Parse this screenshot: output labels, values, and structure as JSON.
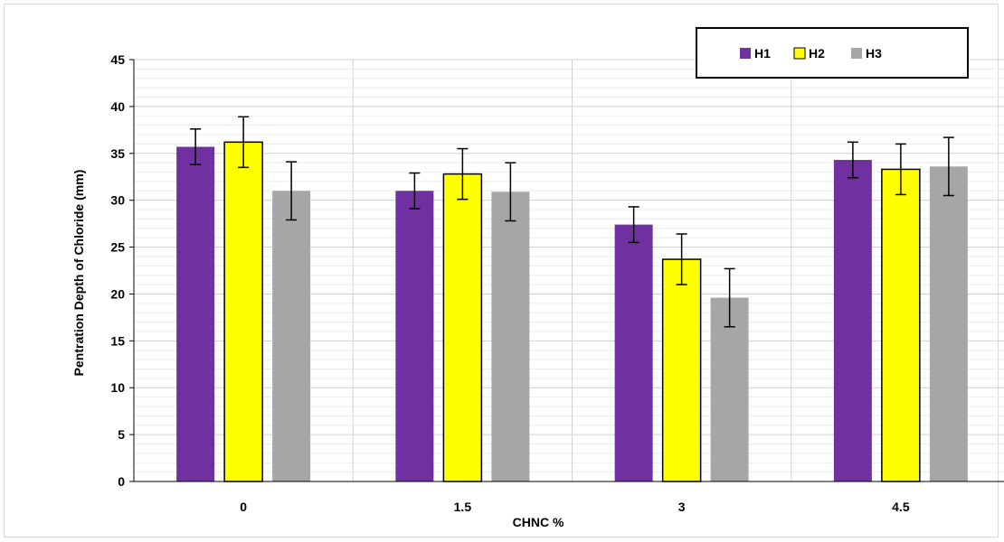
{
  "chart_data": {
    "type": "bar",
    "title": "",
    "xlabel": "CHNC %",
    "ylabel": "Pentration Depth of Chloride (mm)",
    "categories": [
      "0",
      "1.5",
      "3",
      "4.5"
    ],
    "ylim": [
      0,
      45
    ],
    "yticks": [
      "0",
      "5",
      "10",
      "15",
      "20",
      "25",
      "30",
      "35",
      "40",
      "45"
    ],
    "grid": true,
    "legend_position": "top-right",
    "series": [
      {
        "name": "H1",
        "color": "#7030a0",
        "values": [
          35.7,
          31.0,
          27.4,
          34.3
        ],
        "errors": [
          1.9,
          1.9,
          1.9,
          1.9
        ]
      },
      {
        "name": "H2",
        "color": "#ffff00",
        "values": [
          36.2,
          32.8,
          23.7,
          33.3
        ],
        "errors": [
          2.7,
          2.7,
          2.7,
          2.7
        ]
      },
      {
        "name": "H3",
        "color": "#a6a6a6",
        "values": [
          31.0,
          30.9,
          19.6,
          33.6
        ],
        "errors": [
          3.1,
          3.1,
          3.1,
          3.1
        ]
      }
    ]
  }
}
